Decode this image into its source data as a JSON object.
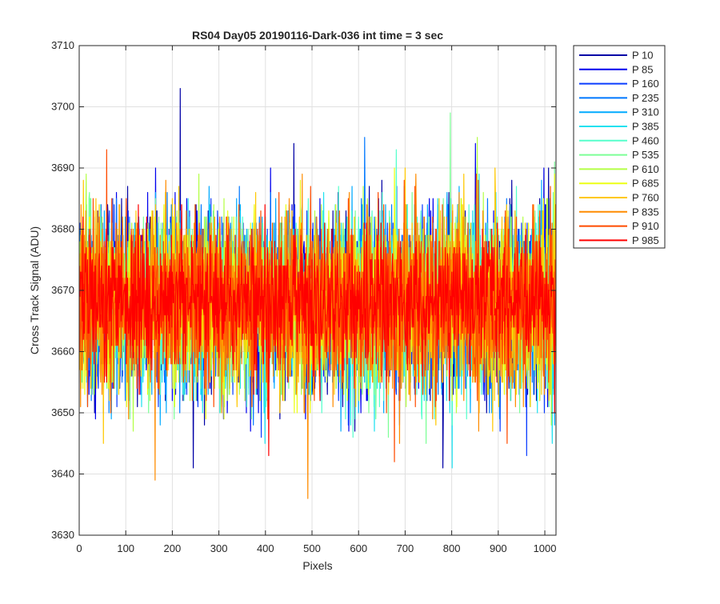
{
  "chart_data": {
    "type": "line",
    "title": "RS04 Day05 20190116-Dark-036 int time = 3 sec",
    "xlabel": "Pixels",
    "ylabel": "Cross Track Signal (ADU)",
    "xlim": [
      0,
      1024
    ],
    "ylim": [
      3630,
      3710
    ],
    "grid": true,
    "legend_position": "outside-top-right",
    "x_ticks": [
      "0",
      "100",
      "200",
      "300",
      "400",
      "500",
      "600",
      "700",
      "800",
      "900",
      "1000"
    ],
    "y_ticks": [
      "3630",
      "3640",
      "3650",
      "3660",
      "3670",
      "3680",
      "3690",
      "3700",
      "3710"
    ],
    "n_points": 1024,
    "series": [
      {
        "name": "P 10",
        "color": "#0000a6",
        "mean": 3668,
        "std": 7.0,
        "seed": 11,
        "peaks": [
          [
            216,
            3703
          ],
          [
            244,
            3641
          ],
          [
            780,
            3641
          ],
          [
            460,
            3694
          ]
        ]
      },
      {
        "name": "P 85",
        "color": "#0000ee",
        "mean": 3668,
        "std": 7.0,
        "seed": 23,
        "peaks": [
          [
            850,
            3694
          ],
          [
            410,
            3690
          ]
        ]
      },
      {
        "name": "P 160",
        "color": "#0a3cff",
        "mean": 3668,
        "std": 7.0,
        "seed": 37,
        "peaks": [
          [
            960,
            3643
          ]
        ]
      },
      {
        "name": "P 235",
        "color": "#0078ff",
        "mean": 3668,
        "std": 7.0,
        "seed": 41,
        "peaks": [
          [
            612,
            3695
          ]
        ]
      },
      {
        "name": "P 310",
        "color": "#00aaff",
        "mean": 3668,
        "std": 7.0,
        "seed": 53,
        "peaks": []
      },
      {
        "name": "P 385",
        "color": "#1ee1f0",
        "mean": 3668,
        "std": 7.0,
        "seed": 61,
        "peaks": [
          [
            800,
            3641
          ],
          [
            1015,
            3645
          ]
        ]
      },
      {
        "name": "P 460",
        "color": "#55ffcc",
        "mean": 3668,
        "std": 7.0,
        "seed": 71,
        "peaks": [
          [
            680,
            3693
          ]
        ]
      },
      {
        "name": "P 535",
        "color": "#7cff96",
        "mean": 3668,
        "std": 7.0,
        "seed": 83,
        "peaks": [
          [
            796,
            3699
          ],
          [
            1020,
            3691
          ]
        ]
      },
      {
        "name": "P 610",
        "color": "#b4ff46",
        "mean": 3668,
        "std": 7.0,
        "seed": 97,
        "peaks": [
          [
            256,
            3689
          ],
          [
            854,
            3695
          ]
        ]
      },
      {
        "name": "P 685",
        "color": "#ecff14",
        "mean": 3668,
        "std": 7.0,
        "seed": 101,
        "peaks": []
      },
      {
        "name": "P 760",
        "color": "#ffc800",
        "mean": 3668,
        "std": 7.0,
        "seed": 113,
        "peaks": []
      },
      {
        "name": "P 835",
        "color": "#ff8c00",
        "mean": 3668,
        "std": 7.0,
        "seed": 127,
        "peaks": [
          [
            490,
            3636
          ],
          [
            162,
            3639
          ]
        ]
      },
      {
        "name": "P 910",
        "color": "#ff4b00",
        "mean": 3668,
        "std": 7.0,
        "seed": 131,
        "peaks": [
          [
            58,
            3693
          ],
          [
            676,
            3642
          ]
        ]
      },
      {
        "name": "P 985",
        "color": "#ff0000",
        "mean": 3668,
        "std": 5.5,
        "seed": 149,
        "peaks": [
          [
            406,
            3643
          ]
        ]
      }
    ]
  }
}
